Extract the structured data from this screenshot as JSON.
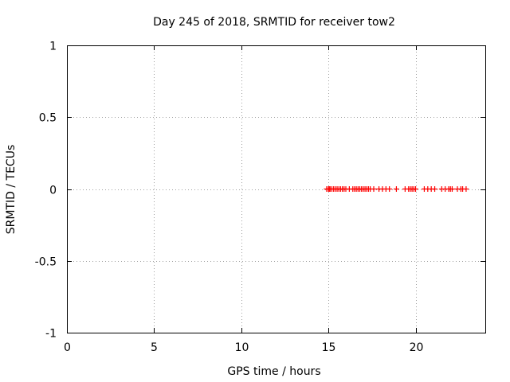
{
  "chart_data": {
    "type": "scatter",
    "title": "Day 245 of 2018, SRMTID for receiver tow2",
    "xlabel": "GPS time / hours",
    "ylabel": "SRMTID / TECUs",
    "xlim": [
      0,
      24
    ],
    "ylim": [
      -1,
      1
    ],
    "xticks": [
      0,
      5,
      10,
      15,
      20
    ],
    "xtick_labels": [
      "0",
      "5",
      "10",
      "15",
      "20"
    ],
    "yticks": [
      -1,
      -0.5,
      0,
      0.5,
      1
    ],
    "ytick_labels": [
      "-1",
      "-0.5",
      "0",
      "0.5",
      "1"
    ],
    "grid": true,
    "marker": "plus",
    "series": [
      {
        "name": "SRMTID",
        "color": "#ff0000",
        "x": [
          14.9,
          15.0,
          15.05,
          15.1,
          15.2,
          15.3,
          15.4,
          15.5,
          15.6,
          15.7,
          15.8,
          15.9,
          16.0,
          16.2,
          16.4,
          16.5,
          16.6,
          16.7,
          16.8,
          16.9,
          17.0,
          17.1,
          17.2,
          17.3,
          17.4,
          17.6,
          17.9,
          18.1,
          18.3,
          18.5,
          18.9,
          19.4,
          19.6,
          19.7,
          19.8,
          19.9,
          20.0,
          20.5,
          20.7,
          20.9,
          21.1,
          21.5,
          21.7,
          21.9,
          22.0,
          22.1,
          22.4,
          22.6,
          22.7,
          22.9
        ],
        "y": [
          0,
          0,
          0,
          0,
          0,
          0,
          0,
          0,
          0,
          0,
          0,
          0,
          0,
          0,
          0,
          0,
          0,
          0,
          0,
          0,
          0,
          0,
          0,
          0,
          0,
          0,
          0,
          0,
          0,
          0,
          0,
          0,
          0,
          0,
          0,
          0,
          0,
          0,
          0,
          0,
          0,
          0,
          0,
          0,
          0,
          0,
          0,
          0,
          0,
          0
        ]
      }
    ]
  }
}
